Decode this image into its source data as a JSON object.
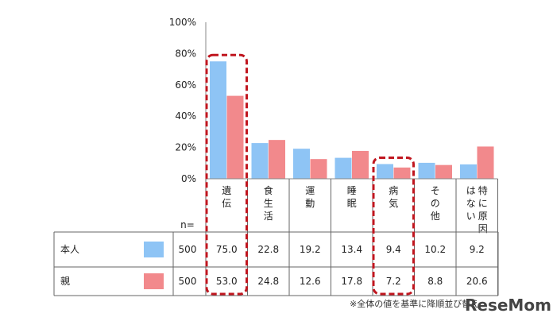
{
  "chart_data": {
    "type": "bar",
    "categories": [
      "遺伝",
      "食生活",
      "運動",
      "睡眠",
      "病気",
      "その他",
      "特に原因はない"
    ],
    "category_columns": [
      [
        "遺伝"
      ],
      [
        "食生活"
      ],
      [
        "運動"
      ],
      [
        "睡眠"
      ],
      [
        "病気"
      ],
      [
        "その他"
      ],
      [
        "特に原因",
        "はない"
      ]
    ],
    "series": [
      {
        "name": "本人",
        "values": [
          75.0,
          22.8,
          19.2,
          13.4,
          9.4,
          10.2,
          9.2
        ],
        "color": "#8EC4F5",
        "table_values": [
          "75.0",
          "22.8",
          "19.2",
          "13.4",
          "9.4",
          "10.2",
          "9.2"
        ],
        "n": "500"
      },
      {
        "name": "親",
        "values": [
          53.0,
          24.8,
          12.6,
          17.8,
          7.2,
          8.8,
          20.6
        ],
        "color": "#F2898C",
        "table_values": [
          "53.0",
          "24.8",
          "12.6",
          "17.8",
          "7.2",
          "8.8",
          "20.6"
        ],
        "n": "500"
      }
    ],
    "y_ticks": [
      "0%",
      "20%",
      "40%",
      "60%",
      "80%",
      "100%"
    ],
    "ylim": [
      0,
      100
    ],
    "n_label": "n=",
    "highlighted_categories": [
      "遺伝",
      "病気"
    ],
    "highlight_color": "#C0161F",
    "title": "",
    "xlabel": "",
    "ylabel": ""
  },
  "footnote": "※全体の値を基準に降順並び替え",
  "watermark": "ReseMom"
}
